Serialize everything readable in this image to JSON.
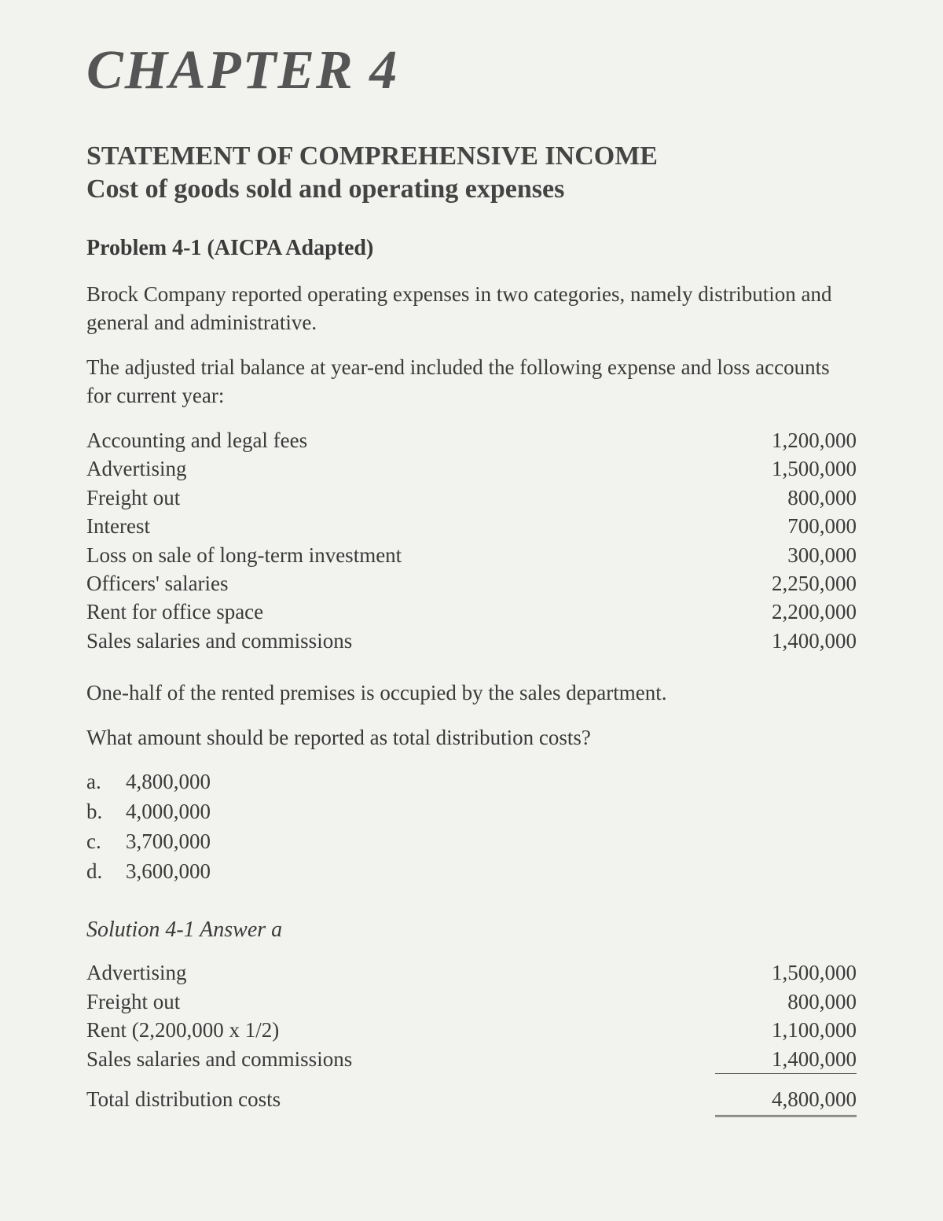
{
  "chapter": "CHAPTER 4",
  "title": "STATEMENT OF COMPREHENSIVE INCOME",
  "subtitle": "Cost of goods sold and operating expenses",
  "problem_head": "Problem 4-1 (AICPA Adapted)",
  "para1": "Brock Company reported operating expenses in two categories, namely distribution and general and administrative.",
  "para2": "The adjusted trial balance at year-end included the following expense and loss accounts for current year:",
  "items": [
    {
      "label": "Accounting and legal fees",
      "amount": "1,200,000"
    },
    {
      "label": "Advertising",
      "amount": "1,500,000"
    },
    {
      "label": "Freight out",
      "amount": "800,000"
    },
    {
      "label": "Interest",
      "amount": "700,000"
    },
    {
      "label": "Loss on sale of long-term investment",
      "amount": "300,000"
    },
    {
      "label": "Officers' salaries",
      "amount": "2,250,000"
    },
    {
      "label": "Rent for office space",
      "amount": "2,200,000"
    },
    {
      "label": "Sales salaries and commissions",
      "amount": "1,400,000"
    }
  ],
  "para3": "One-half of the rented premises is occupied by the sales department.",
  "question": "What amount should be reported as total distribution costs?",
  "options": [
    {
      "letter": "a.",
      "value": "4,800,000"
    },
    {
      "letter": "b.",
      "value": "4,000,000"
    },
    {
      "letter": "c.",
      "value": "3,700,000"
    },
    {
      "letter": "d.",
      "value": "3,600,000"
    }
  ],
  "solution_head": "Solution 4-1 Answer a",
  "solution_items": [
    {
      "label": "Advertising",
      "amount": "1,500,000"
    },
    {
      "label": "Freight out",
      "amount": "800,000"
    },
    {
      "label": "Rent   (2,200,000 x 1/2)",
      "amount": "1,100,000"
    },
    {
      "label": "Sales salaries and commissions",
      "amount": "1,400,000"
    }
  ],
  "solution_total": {
    "label": "Total distribution costs",
    "amount": "4,800,000"
  }
}
